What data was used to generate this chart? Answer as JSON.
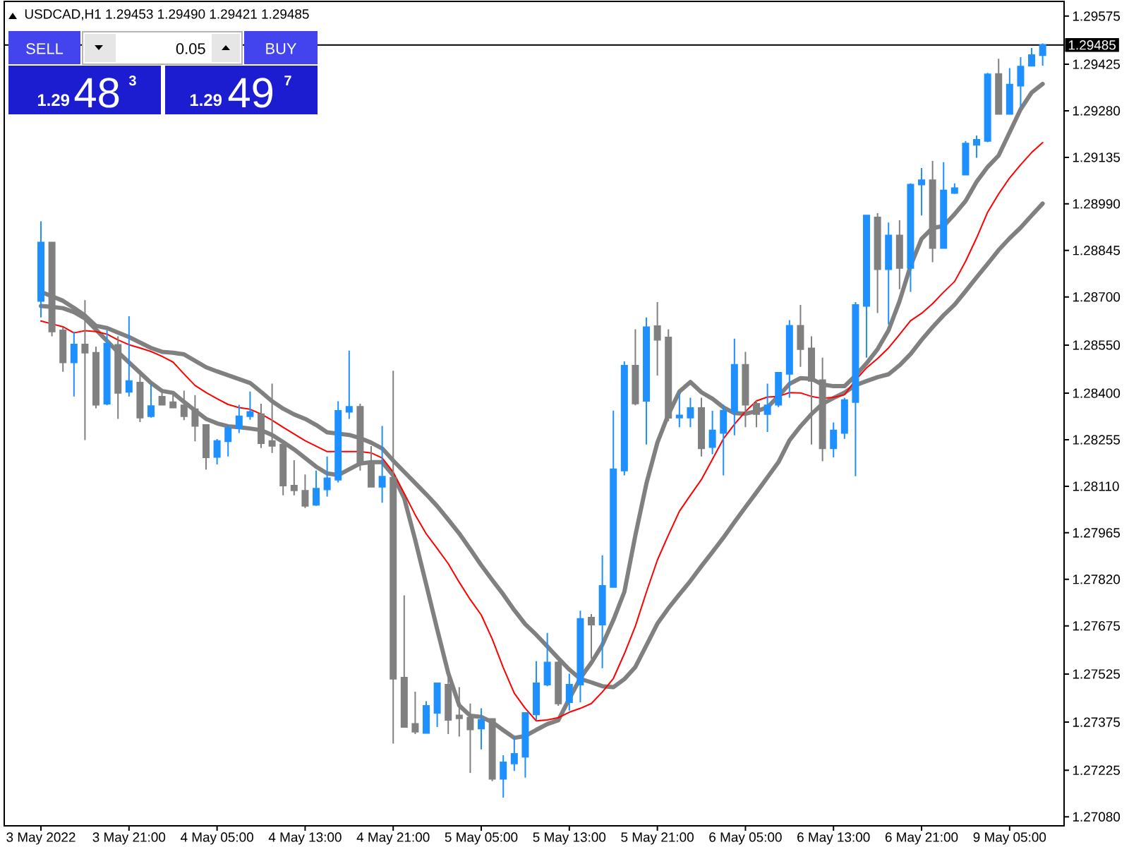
{
  "chart_data": {
    "type": "candlestick",
    "title": "USDCAD,H1 1.29453 1.29490 1.29421 1.29485",
    "categories": [
      "3 May 2022",
      null,
      null,
      null,
      null,
      null,
      null,
      null,
      "3 May 21:00",
      null,
      null,
      null,
      null,
      null,
      null,
      null,
      "4 May 05:00",
      null,
      null,
      null,
      null,
      null,
      null,
      null,
      "4 May 13:00",
      null,
      null,
      null,
      null,
      null,
      null,
      null,
      "4 May 21:00",
      null,
      null,
      null,
      null,
      null,
      null,
      null,
      "5 May 05:00",
      null,
      null,
      null,
      null,
      null,
      null,
      null,
      "5 May 13:00",
      null,
      null,
      null,
      null,
      null,
      null,
      null,
      "5 May 21:00",
      null,
      null,
      null,
      null,
      null,
      null,
      null,
      "6 May 05:00",
      null,
      null,
      null,
      null,
      null,
      null,
      null,
      "6 May 13:00",
      null,
      null,
      null,
      null,
      null,
      null,
      null,
      "6 May 21:00",
      null,
      null,
      null,
      null,
      null,
      null,
      null,
      "9 May 05:00",
      null,
      null,
      null
    ],
    "ohlc": [
      [
        1.28687,
        1.28936,
        1.28636,
        1.2887
      ],
      [
        1.2887,
        1.2887,
        1.28577,
        1.28592
      ],
      [
        1.28596,
        1.28606,
        1.28467,
        1.28496
      ],
      [
        1.28496,
        1.28592,
        1.2839,
        1.28552
      ],
      [
        1.28552,
        1.2869,
        1.28254,
        1.28526
      ],
      [
        1.28526,
        1.28545,
        1.28353,
        1.28364
      ],
      [
        1.28367,
        1.28596,
        1.28362,
        1.28555
      ],
      [
        1.28551,
        1.28577,
        1.2832,
        1.28401
      ],
      [
        1.28404,
        1.2864,
        1.2839,
        1.28438
      ],
      [
        1.28433,
        1.28471,
        1.2831,
        1.28324
      ],
      [
        1.28328,
        1.2843,
        1.28324,
        1.2836
      ],
      [
        1.28389,
        1.28408,
        1.28362,
        1.28364
      ],
      [
        1.28372,
        1.28404,
        1.28353,
        1.28355
      ],
      [
        1.28362,
        1.28408,
        1.28316,
        1.28328
      ],
      [
        1.2835,
        1.28394,
        1.2825,
        1.28298
      ],
      [
        1.28301,
        1.28301,
        1.28162,
        1.282
      ],
      [
        1.28201,
        1.28257,
        1.28178,
        1.28251
      ],
      [
        1.2825,
        1.28301,
        1.28203,
        1.28291
      ],
      [
        1.28291,
        1.28364,
        1.28276,
        1.28328
      ],
      [
        1.28328,
        1.28405,
        1.28317,
        1.28342
      ],
      [
        1.28335,
        1.28367,
        1.28229,
        1.28244
      ],
      [
        1.28251,
        1.2843,
        1.28214,
        1.28236
      ],
      [
        1.2824,
        1.2824,
        1.28082,
        1.28112
      ],
      [
        1.28112,
        1.28191,
        1.28082,
        1.28097
      ],
      [
        1.28096,
        1.28147,
        1.28042,
        1.28049
      ],
      [
        1.28052,
        1.28159,
        1.28049,
        1.28103
      ],
      [
        1.281,
        1.28203,
        1.28078,
        1.28135
      ],
      [
        1.2813,
        1.28375,
        1.28122,
        1.28345
      ],
      [
        1.28342,
        1.28533,
        1.2832,
        1.28358
      ],
      [
        1.28358,
        1.28367,
        1.28159,
        1.28181
      ],
      [
        1.28185,
        1.28235,
        1.28108,
        1.28108
      ],
      [
        1.28108,
        1.28298,
        1.28059,
        1.2814
      ],
      [
        1.28137,
        1.2847,
        1.27308,
        1.2751
      ],
      [
        1.27514,
        1.2777,
        1.2736,
        1.2736
      ],
      [
        1.2737,
        1.2747,
        1.27338,
        1.27345
      ],
      [
        1.27341,
        1.2744,
        1.27341,
        1.27426
      ],
      [
        1.27404,
        1.27496,
        1.2736,
        1.27496
      ],
      [
        1.27492,
        1.27526,
        1.27338,
        1.27382
      ],
      [
        1.27396,
        1.27484,
        1.2733,
        1.27387
      ],
      [
        1.27389,
        1.27433,
        1.27217,
        1.27352
      ],
      [
        1.27355,
        1.27418,
        1.2729,
        1.27382
      ],
      [
        1.27385,
        1.27385,
        1.27191,
        1.27198
      ],
      [
        1.27198,
        1.27272,
        1.2714,
        1.2725
      ],
      [
        1.27246,
        1.2733,
        1.27223,
        1.27276
      ],
      [
        1.27267,
        1.27404,
        1.27202,
        1.27404
      ],
      [
        1.27399,
        1.27565,
        1.27382,
        1.27496
      ],
      [
        1.27492,
        1.27653,
        1.27487,
        1.27561
      ],
      [
        1.27561,
        1.27565,
        1.27426,
        1.27433
      ],
      [
        1.27437,
        1.27526,
        1.27411,
        1.27492
      ],
      [
        1.27492,
        1.27722,
        1.27437,
        1.27697
      ],
      [
        1.27701,
        1.27712,
        1.27572,
        1.27679
      ],
      [
        1.27679,
        1.27895,
        1.27543,
        1.278
      ],
      [
        1.27796,
        1.28346,
        1.27796,
        1.28163
      ],
      [
        1.28159,
        1.28499,
        1.28144,
        1.28486
      ],
      [
        1.28486,
        1.28599,
        1.28362,
        1.28368
      ],
      [
        1.28376,
        1.28636,
        1.2824,
        1.28606
      ],
      [
        1.28609,
        1.28684,
        1.28455,
        1.28566
      ],
      [
        1.28574,
        1.28599,
        1.28313,
        1.28323
      ],
      [
        1.28324,
        1.28401,
        1.28294,
        1.28331
      ],
      [
        1.28324,
        1.28386,
        1.28294,
        1.28354
      ],
      [
        1.28354,
        1.28386,
        1.28203,
        1.28228
      ],
      [
        1.28232,
        1.28345,
        1.2821,
        1.28284
      ],
      [
        1.28276,
        1.28364,
        1.28144,
        1.28346
      ],
      [
        1.28342,
        1.2857,
        1.28269,
        1.28489
      ],
      [
        1.28489,
        1.28529,
        1.28294,
        1.28364
      ],
      [
        1.28367,
        1.28376,
        1.28294,
        1.28335
      ],
      [
        1.28335,
        1.2843,
        1.28279,
        1.28362
      ],
      [
        1.28364,
        1.28464,
        1.28357,
        1.28464
      ],
      [
        1.2846,
        1.28628,
        1.28386,
        1.2861
      ],
      [
        1.2861,
        1.28675,
        1.28482,
        1.28537
      ],
      [
        1.2854,
        1.28577,
        1.2824,
        1.28438
      ],
      [
        1.28441,
        1.28511,
        1.28188,
        1.28228
      ],
      [
        1.28228,
        1.28309,
        1.282,
        1.28284
      ],
      [
        1.28276,
        1.28386,
        1.28258,
        1.28379
      ],
      [
        1.28372,
        1.28684,
        1.28141,
        1.28675
      ],
      [
        1.28672,
        1.28954,
        1.28511,
        1.28954
      ],
      [
        1.28948,
        1.28961,
        1.2865,
        1.28786
      ],
      [
        1.28786,
        1.28932,
        1.28614,
        1.28892
      ],
      [
        1.28892,
        1.28939,
        1.28724,
        1.2879
      ],
      [
        1.2879,
        1.29054,
        1.28716,
        1.2905
      ],
      [
        1.2905,
        1.29102,
        1.28954,
        1.29064
      ],
      [
        1.29064,
        1.29124,
        1.28808,
        1.28852
      ],
      [
        1.28852,
        1.2912,
        1.28852,
        1.29032
      ],
      [
        1.29024,
        1.29054,
        1.29021,
        1.29039
      ],
      [
        1.29081,
        1.29186,
        1.29081,
        1.29178
      ],
      [
        1.29174,
        1.29203,
        1.29134,
        1.2919
      ],
      [
        1.29186,
        1.29398,
        1.29182,
        1.29394
      ],
      [
        1.29395,
        1.29442,
        1.2927,
        1.2927
      ],
      [
        1.2927,
        1.29413,
        1.2927,
        1.29362
      ],
      [
        1.29358,
        1.29447,
        1.29291,
        1.29418
      ],
      [
        1.2942,
        1.29476,
        1.29418,
        1.29454
      ],
      [
        1.29453,
        1.2949,
        1.29421,
        1.29485
      ]
    ],
    "colors": [
      "#1e90ff",
      "#808080",
      "#808080",
      "#1e90ff",
      "#808080",
      "#808080",
      "#1e90ff",
      "#808080",
      "#1e90ff",
      "#808080",
      "#1e90ff",
      "#808080",
      "#808080",
      "#808080",
      "#808080",
      "#808080",
      "#1e90ff",
      "#1e90ff",
      "#1e90ff",
      "#1e90ff",
      "#808080",
      "#808080",
      "#808080",
      "#808080",
      "#808080",
      "#1e90ff",
      "#1e90ff",
      "#1e90ff",
      "#1e90ff",
      "#808080",
      "#808080",
      "#1e90ff",
      "#808080",
      "#808080",
      "#808080",
      "#1e90ff",
      "#1e90ff",
      "#808080",
      "#808080",
      "#808080",
      "#1e90ff",
      "#808080",
      "#1e90ff",
      "#1e90ff",
      "#1e90ff",
      "#1e90ff",
      "#1e90ff",
      "#808080",
      "#1e90ff",
      "#1e90ff",
      "#808080",
      "#1e90ff",
      "#1e90ff",
      "#1e90ff",
      "#808080",
      "#1e90ff",
      "#808080",
      "#808080",
      "#1e90ff",
      "#1e90ff",
      "#808080",
      "#1e90ff",
      "#1e90ff",
      "#1e90ff",
      "#808080",
      "#808080",
      "#1e90ff",
      "#1e90ff",
      "#1e90ff",
      "#808080",
      "#808080",
      "#808080",
      "#1e90ff",
      "#1e90ff",
      "#1e90ff",
      "#1e90ff",
      "#808080",
      "#1e90ff",
      "#808080",
      "#1e90ff",
      "#1e90ff",
      "#808080",
      "#1e90ff",
      "#1e90ff",
      "#1e90ff",
      "#1e90ff",
      "#1e90ff",
      "#808080",
      "#1e90ff",
      "#1e90ff",
      "#1e90ff",
      "#1e90ff"
    ],
    "series": [
      {
        "type": "line",
        "color": "#808080",
        "values": [
          1.28716,
          1.28702,
          1.28688,
          1.28666,
          1.28642,
          1.2861,
          1.28603,
          1.28589,
          1.28575,
          1.28558,
          1.28541,
          1.28529,
          1.28526,
          1.28521,
          1.28501,
          1.28481,
          1.28468,
          1.28456,
          1.28444,
          1.28432,
          1.28404,
          1.28375,
          1.28352,
          1.28334,
          1.2832,
          1.28301,
          1.28278,
          1.28274,
          1.2827,
          1.2826,
          1.28246,
          1.28228,
          1.2819,
          1.28155,
          1.2812,
          1.28085,
          1.28048,
          1.28006,
          1.27963,
          1.27914,
          1.27864,
          1.27818,
          1.27773,
          1.27724,
          1.2768,
          1.27647,
          1.27611,
          1.27574,
          1.27539,
          1.2751,
          1.27499,
          1.27487,
          1.27484,
          1.27509,
          1.27547,
          1.27614,
          1.27682,
          1.2773,
          1.27773,
          1.27815,
          1.27861,
          1.27905,
          1.2795,
          1.27998,
          1.28045,
          1.28091,
          1.28138,
          1.28185,
          1.28253,
          1.28297,
          1.28335,
          1.28367,
          1.28385,
          1.28402,
          1.28425,
          1.28438,
          1.2845,
          1.28459,
          1.28487,
          1.28522,
          1.28566,
          1.28606,
          1.28643,
          1.28676,
          1.28718,
          1.28761,
          1.28803,
          1.28846,
          1.28883,
          1.28916,
          1.28954,
          1.28991
        ]
      },
      {
        "type": "line",
        "color": "#808080",
        "values": [
          1.28672,
          1.28669,
          1.28665,
          1.28653,
          1.28633,
          1.28598,
          1.28563,
          1.28528,
          1.28496,
          1.28464,
          1.28432,
          1.28407,
          1.28401,
          1.28373,
          1.28346,
          1.2832,
          1.28306,
          1.28297,
          1.28294,
          1.2829,
          1.28285,
          1.2827,
          1.28248,
          1.28225,
          1.28198,
          1.28171,
          1.2815,
          1.28145,
          1.28163,
          1.28181,
          1.28185,
          1.28185,
          1.28144,
          1.28073,
          1.27943,
          1.27804,
          1.27664,
          1.27528,
          1.27427,
          1.27395,
          1.27391,
          1.27375,
          1.2735,
          1.27326,
          1.27332,
          1.27351,
          1.27369,
          1.27381,
          1.27448,
          1.27512,
          1.2756,
          1.27616,
          1.27693,
          1.27781,
          1.27957,
          1.28118,
          1.28246,
          1.28334,
          1.28405,
          1.28435,
          1.28403,
          1.28383,
          1.28356,
          1.28338,
          1.28336,
          1.28344,
          1.28356,
          1.28391,
          1.28429,
          1.28447,
          1.28445,
          1.28427,
          1.28422,
          1.28422,
          1.28455,
          1.28493,
          1.28537,
          1.28596,
          1.28687,
          1.28797,
          1.28881,
          1.28915,
          1.28921,
          1.28958,
          1.28999,
          1.29059,
          1.29105,
          1.29141,
          1.29213,
          1.29285,
          1.29337,
          1.29364
        ]
      },
      {
        "type": "line",
        "color": "#ff0000",
        "values": [
          1.28625,
          1.28616,
          1.28607,
          1.28588,
          1.28595,
          1.28592,
          1.28584,
          1.28566,
          1.28551,
          1.28541,
          1.2853,
          1.28515,
          1.28497,
          1.2846,
          1.28424,
          1.28402,
          1.28383,
          1.28365,
          1.28355,
          1.2835,
          1.28335,
          1.28316,
          1.28294,
          1.28273,
          1.28252,
          1.28235,
          1.28218,
          1.28218,
          1.28218,
          1.28218,
          1.28214,
          1.28198,
          1.28154,
          1.28088,
          1.28021,
          1.27962,
          1.27916,
          1.27869,
          1.27811,
          1.27757,
          1.27709,
          1.27634,
          1.27545,
          1.27465,
          1.27418,
          1.27379,
          1.27382,
          1.27389,
          1.27406,
          1.27418,
          1.27433,
          1.27469,
          1.27511,
          1.27588,
          1.27674,
          1.2778,
          1.2788,
          1.27958,
          1.28032,
          1.28082,
          1.28131,
          1.28194,
          1.28258,
          1.28303,
          1.28343,
          1.28376,
          1.28388,
          1.2839,
          1.28402,
          1.28401,
          1.2839,
          1.28384,
          1.28387,
          1.28395,
          1.28441,
          1.28479,
          1.28508,
          1.28541,
          1.28583,
          1.28626,
          1.28649,
          1.28679,
          1.28715,
          1.28748,
          1.28811,
          1.28884,
          1.28964,
          1.29021,
          1.29071,
          1.29112,
          1.2915,
          1.29181
        ]
      }
    ],
    "ylim": [
      1.27052,
      1.29621
    ],
    "yticks": [
      {
        "value": 1.2708,
        "label": "1.27080"
      },
      1.27225,
      1.27375,
      1.27525,
      1.27675,
      {
        "value": 1.2782,
        "label": "1.27820"
      },
      1.27965,
      {
        "value": 1.2811,
        "label": "1.28110"
      },
      1.28255,
      {
        "value": 1.284,
        "label": "1.28400"
      },
      {
        "value": 1.2855,
        "label": "1.28550"
      },
      {
        "value": 1.287,
        "label": "1.28700"
      },
      1.28845,
      {
        "value": 1.2899,
        "label": "1.28990"
      },
      1.29135,
      {
        "value": 1.2928,
        "label": "1.29280"
      },
      1.29425,
      1.29575
    ],
    "ref_lines": [
      {
        "axis": "y",
        "value": 1.29485,
        "label": "1.29485",
        "color": "#000000"
      }
    ],
    "annotations": [
      "SELL",
      "0.05",
      "BUY",
      "1.29",
      "48",
      "3",
      "1.29",
      "49",
      "7"
    ]
  }
}
